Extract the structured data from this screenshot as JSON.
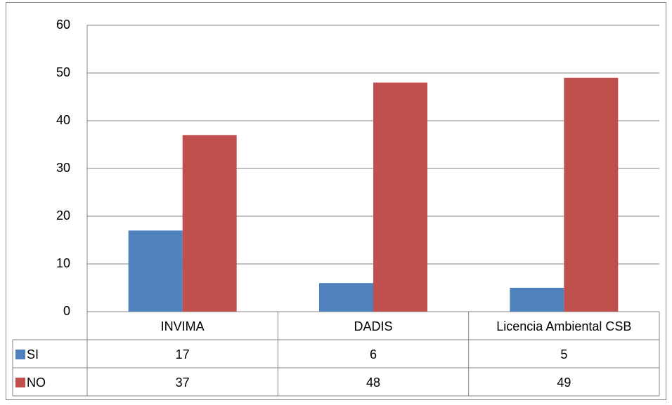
{
  "chart_data": {
    "type": "bar",
    "categories": [
      "INVIMA",
      "DADIS",
      "Licencia Ambiental CSB"
    ],
    "series": [
      {
        "name": "SI",
        "color": "#4f81bd",
        "values": [
          17,
          6,
          5
        ]
      },
      {
        "name": "NO",
        "color": "#c0504d",
        "values": [
          37,
          48,
          49
        ]
      }
    ],
    "ylim": [
      0,
      60
    ],
    "yticks": [
      0,
      10,
      20,
      30,
      40,
      50,
      60
    ],
    "grid": true,
    "data_table": true
  }
}
